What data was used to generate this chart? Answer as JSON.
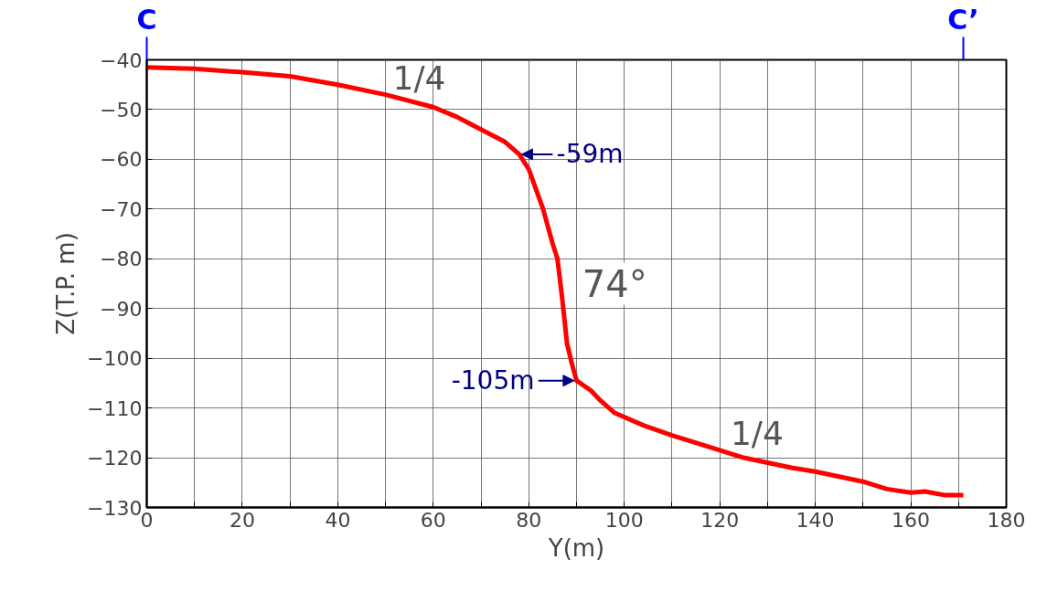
{
  "chart_data": {
    "type": "line",
    "xlabel": "Y(m)",
    "ylabel": "Z(T.P. m)",
    "x": [
      0,
      10,
      20,
      30,
      40,
      50,
      60,
      65,
      70,
      75,
      78,
      80,
      83,
      85,
      86,
      87,
      88,
      89,
      90,
      93,
      95,
      98,
      104,
      110,
      116,
      120,
      125,
      130,
      135,
      140,
      145,
      150,
      155,
      160,
      163,
      167,
      171
    ],
    "series": [
      {
        "color": "#ff0000",
        "values": [
          -41.5,
          -41.8,
          -42.5,
          -43.3,
          -45,
          -47,
          -49.5,
          -51.5,
          -54,
          -56.5,
          -59,
          -62,
          -70,
          -77,
          -80,
          -88,
          -97,
          -101,
          -104.5,
          -106.5,
          -108.5,
          -111,
          -113.5,
          -115.5,
          -117.3,
          -118.5,
          -120,
          -121,
          -122,
          -122.8,
          -123.8,
          -124.8,
          -126.3,
          -127,
          -126.8,
          -127.5,
          -127.5
        ]
      }
    ],
    "xlim": [
      0,
      180
    ],
    "ylim": [
      -130,
      -40
    ],
    "xticks": [
      0,
      {
        "value": 10,
        "label": null
      },
      20,
      {
        "value": 30,
        "label": null
      },
      40,
      {
        "value": 50,
        "label": null
      },
      60,
      {
        "value": 70,
        "label": null
      },
      80,
      {
        "value": 90,
        "label": null
      },
      100,
      {
        "value": 110,
        "label": null
      },
      120,
      {
        "value": 130,
        "label": null
      },
      140,
      {
        "value": 150,
        "label": null
      },
      160,
      {
        "value": 170,
        "label": null
      },
      180
    ],
    "yticks": [
      -130,
      -120,
      -110,
      -100,
      -90,
      -80,
      -70,
      -60,
      -50,
      -40
    ],
    "grid": true,
    "marker": "none",
    "line_style": "solid",
    "annotations": [
      "C",
      "C’",
      "1/4",
      {
        "text": "-59m",
        "x": 78,
        "y": -59
      },
      {
        "text": "74°",
        "x": 87,
        "y": -85
      },
      {
        "text": "-105m",
        "x": 90,
        "y": -104.5
      },
      "1/4"
    ]
  }
}
